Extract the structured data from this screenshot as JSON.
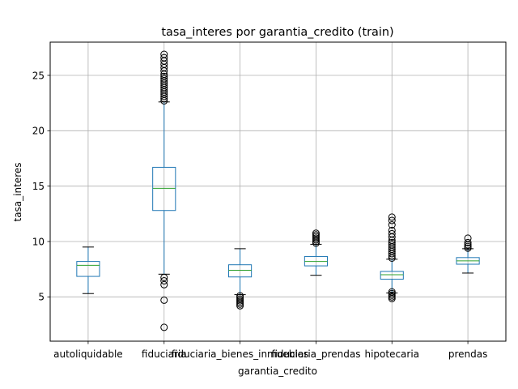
{
  "chart_data": {
    "type": "box",
    "title": "tasa_interes por garantia_credito (train)",
    "xlabel": "garantia_credito",
    "ylabel": "tasa_interes",
    "ylim": [
      1.0,
      28.0
    ],
    "yticks": [
      5,
      10,
      15,
      20,
      25
    ],
    "grid": true,
    "colors": {
      "box": "#1f77b4",
      "median": "#2ca02c",
      "whisker": "#000000",
      "grid": "#b0b0b0"
    },
    "categories": [
      "autoliquidable",
      "fiduciaria",
      "fiduciaria_bienes_inmuebles",
      "fiduciaria_prendas",
      "hipotecaria",
      "prendas"
    ],
    "boxes": [
      {
        "label": "autoliquidable",
        "whislo": 5.3,
        "q1": 6.85,
        "med": 7.85,
        "q3": 8.2,
        "whishi": 9.5,
        "fliers": []
      },
      {
        "label": "fiduciaria",
        "whislo": 7.05,
        "q1": 12.8,
        "med": 14.8,
        "q3": 16.7,
        "whishi": 22.6,
        "fliers": [
          2.25,
          4.7,
          6.1,
          6.45,
          6.75,
          22.7,
          22.9,
          23.1,
          23.3,
          23.5,
          23.7,
          23.9,
          24.1,
          24.3,
          24.5,
          24.7,
          24.9,
          25.1,
          25.4,
          25.7,
          26.0,
          26.3,
          26.6,
          26.9
        ]
      },
      {
        "label": "fiduciaria_bienes_inmuebles",
        "whislo": 5.2,
        "q1": 6.8,
        "med": 7.4,
        "q3": 7.9,
        "whishi": 9.35,
        "fliers": [
          4.2,
          4.35,
          4.5,
          4.65,
          4.8,
          4.95,
          5.1
        ]
      },
      {
        "label": "fiduciaria_prendas",
        "whislo": 6.95,
        "q1": 7.8,
        "med": 8.2,
        "q3": 8.65,
        "whishi": 9.75,
        "fliers": [
          9.85,
          10.0,
          10.15,
          10.3,
          10.45,
          10.6,
          10.75
        ]
      },
      {
        "label": "hipotecaria",
        "whislo": 5.35,
        "q1": 6.6,
        "med": 7.0,
        "q3": 7.3,
        "whishi": 8.4,
        "fliers": [
          4.85,
          5.0,
          5.15,
          5.3,
          5.45,
          8.5,
          8.7,
          8.9,
          9.1,
          9.3,
          9.5,
          9.7,
          9.9,
          10.1,
          10.4,
          10.7,
          11.0,
          11.5,
          11.9,
          12.2
        ]
      },
      {
        "label": "prendas",
        "whislo": 7.15,
        "q1": 7.95,
        "med": 8.25,
        "q3": 8.55,
        "whishi": 9.35,
        "fliers": [
          9.4,
          9.55,
          9.7,
          9.9,
          10.3
        ]
      }
    ]
  }
}
